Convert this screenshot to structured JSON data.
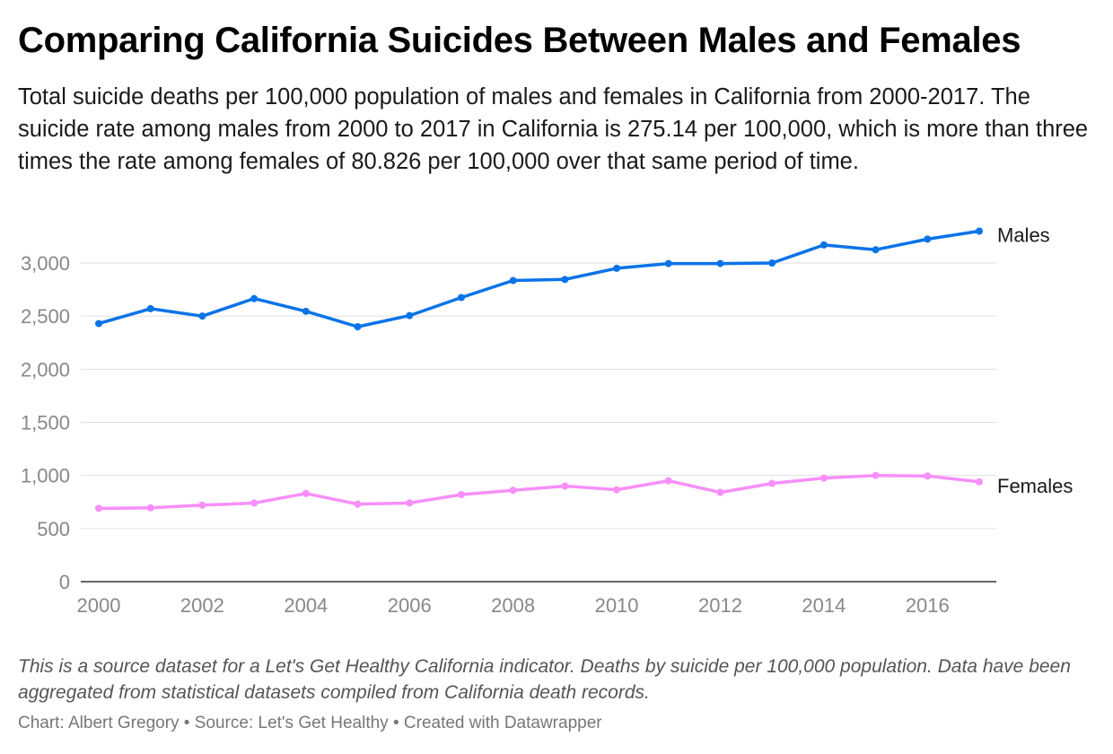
{
  "title": "Comparing California Suicides Between Males and Females",
  "description": "Total suicide deaths per 100,000 population of males and females in California from 2000-2017. The suicide rate among males from 2000 to 2017 in California is 275.14 per 100,000, which is more than three times the rate among females of 80.826 per 100,000 over that same period of time.",
  "notes": "This is a source dataset for a Let's Get Healthy California indicator. Deaths by suicide per 100,000 population. Data have been aggregated from statistical datasets compiled from California death records.",
  "footer": {
    "chart_label": "Chart:",
    "author": "Albert Gregory",
    "source_label": "Source:",
    "source": "Let's Get Healthy",
    "created_with": "Created with Datawrapper"
  },
  "chart_data": {
    "type": "line",
    "title": "Comparing California Suicides Between Males and Females",
    "xlabel": "",
    "ylabel": "",
    "x": [
      2000,
      2001,
      2002,
      2003,
      2004,
      2005,
      2006,
      2007,
      2008,
      2009,
      2010,
      2011,
      2012,
      2013,
      2014,
      2015,
      2016,
      2017
    ],
    "xlim": [
      2000,
      2017
    ],
    "ylim": [
      0,
      3000
    ],
    "x_ticks": [
      "2000",
      "2002",
      "2004",
      "2006",
      "2008",
      "2010",
      "2012",
      "2014",
      "2016"
    ],
    "y_ticks": [
      "0",
      "500",
      "1,000",
      "1,500",
      "2,000",
      "2,500",
      "3,000"
    ],
    "grid": true,
    "legend": "direct labels at line ends",
    "series": [
      {
        "name": "Males",
        "color": "#0a73e8",
        "values": [
          2430,
          2570,
          2500,
          2665,
          2545,
          2400,
          2505,
          2675,
          2835,
          2845,
          2950,
          2995,
          2995,
          3000,
          3170,
          3125,
          3225,
          3300
        ]
      },
      {
        "name": "Females",
        "color": "#f78ff9",
        "values": [
          690,
          695,
          720,
          740,
          830,
          730,
          740,
          820,
          860,
          900,
          865,
          950,
          840,
          925,
          975,
          1000,
          995,
          940
        ]
      }
    ]
  }
}
